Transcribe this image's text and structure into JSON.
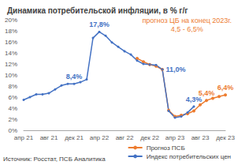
{
  "chart_data": {
    "type": "line",
    "title": "Динамика потребительской инфляции, в % г/г",
    "source": "Источник: Росстат, ПСБ Аналитика",
    "note": [
      "прогноз ЦБ на конец 2023г.",
      "4,5 - 6,5%"
    ],
    "note_color": "#ed7d31",
    "categories": [
      "апр 21",
      null,
      null,
      null,
      "авг 21",
      null,
      null,
      null,
      "дек 21",
      null,
      null,
      null,
      "апр 22",
      null,
      null,
      null,
      "авг 22",
      null,
      null,
      null,
      "дек 22",
      null,
      null,
      null,
      "апр 23",
      null,
      null,
      null,
      "авг 23",
      null,
      null,
      null,
      "дек 23"
    ],
    "series": [
      {
        "name": "Прогноз ПСБ",
        "color": "#ed7d31",
        "marker": "circle",
        "line_style": "solid",
        "values": [
          null,
          null,
          null,
          null,
          null,
          null,
          null,
          null,
          null,
          null,
          null,
          null,
          null,
          null,
          null,
          null,
          null,
          null,
          13.0,
          12.4,
          11.9,
          11.6,
          11.0,
          3.6,
          2.5,
          2.7,
          3.0,
          3.5,
          4.6,
          5.4,
          5.8,
          6.1,
          6.4
        ]
      },
      {
        "name": "Индекс потребительских цен",
        "color": "#4472c4",
        "marker": "circle",
        "line_style": "solid",
        "values": [
          5.5,
          6.0,
          6.5,
          6.5,
          6.7,
          7.4,
          8.1,
          8.4,
          8.4,
          8.7,
          9.2,
          16.7,
          17.8,
          17.1,
          15.9,
          15.1,
          14.3,
          13.7,
          12.6,
          12.0,
          11.9,
          11.8,
          11.0,
          3.5,
          2.3,
          2.5,
          3.2,
          4.3,
          null,
          null,
          null,
          null,
          null
        ]
      }
    ],
    "annotations": [
      {
        "series": "Индекс потребительских цен",
        "index": 8,
        "label": "8,4%"
      },
      {
        "series": "Индекс потребительских цен",
        "index": 12,
        "label": "17,8%"
      },
      {
        "series": "Индекс потребительских цен",
        "index": 22,
        "label": "11,0%"
      },
      {
        "series": "Индекс потребительских цен",
        "index": 27,
        "label": "4,3%"
      },
      {
        "series": "Прогноз ПСБ",
        "index": 29,
        "label": "5,4%"
      },
      {
        "series": "Прогноз ПСБ",
        "index": 32,
        "label": "6,4%"
      }
    ],
    "ylim": [
      0,
      20
    ],
    "yticks": [
      {
        "value": 0,
        "label": "0%"
      },
      {
        "value": 2,
        "label": "2%"
      },
      {
        "value": 4,
        "label": "4%"
      },
      {
        "value": 6,
        "label": "6%"
      },
      {
        "value": 8,
        "label": "8%"
      },
      {
        "value": 10,
        "label": "10%"
      },
      {
        "value": 12,
        "label": "12%"
      },
      {
        "value": 14,
        "label": "14%"
      },
      {
        "value": 16,
        "label": "16%"
      },
      {
        "value": 18,
        "label": "18%"
      },
      {
        "value": 20,
        "label": "20%"
      }
    ],
    "grid": false,
    "legend": "bottom-right"
  }
}
